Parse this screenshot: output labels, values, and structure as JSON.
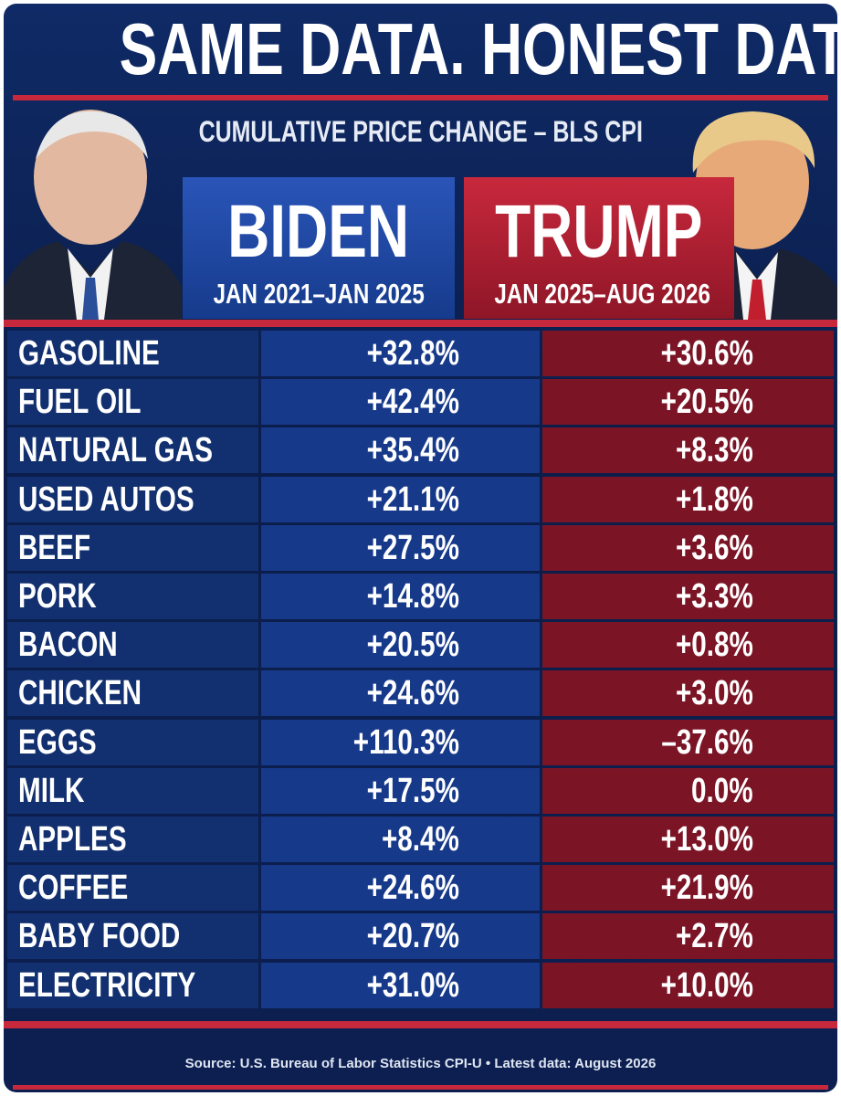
{
  "header": {
    "title": "SAME DATA. HONEST DATES.",
    "subtitle": "CUMULATIVE PRICE CHANGE – BLS CPI"
  },
  "columns": [
    {
      "name": "BIDEN",
      "dates": "JAN 2021–JAN 2025"
    },
    {
      "name": "TRUMP",
      "dates": "JAN 2025–AUG 2026"
    }
  ],
  "table": {
    "rows": [
      [
        "GASOLINE",
        "+32.8%",
        "+30.6%"
      ],
      [
        "FUEL OIL",
        "+42.4%",
        "+20.5%"
      ],
      [
        "NATURAL GAS",
        "+35.4%",
        "+8.3%"
      ],
      [
        "USED AUTOS",
        "+21.1%",
        "+1.8%"
      ],
      [
        "BEEF",
        "+27.5%",
        "+3.6%"
      ],
      [
        "PORK",
        "+14.8%",
        "+3.3%"
      ],
      [
        "BACON",
        "+20.5%",
        "+0.8%"
      ],
      [
        "CHICKEN",
        "+24.6%",
        "+3.0%"
      ],
      [
        "EGGS",
        "+110.3%",
        "–37.6%"
      ],
      [
        "MILK",
        "+17.5%",
        "0.0%"
      ],
      [
        "APPLES",
        "+8.4%",
        "+13.0%"
      ],
      [
        "COFFEE",
        "+24.6%",
        "+21.9%"
      ],
      [
        "BABY FOOD",
        "+20.7%",
        "+2.7%"
      ],
      [
        "ELECTRICITY",
        "+31.0%",
        "+10.0%"
      ]
    ]
  },
  "footer": {
    "source": "Source: U.S. Bureau of Labor Statistics CPI-U • Latest data: August 2026"
  }
}
